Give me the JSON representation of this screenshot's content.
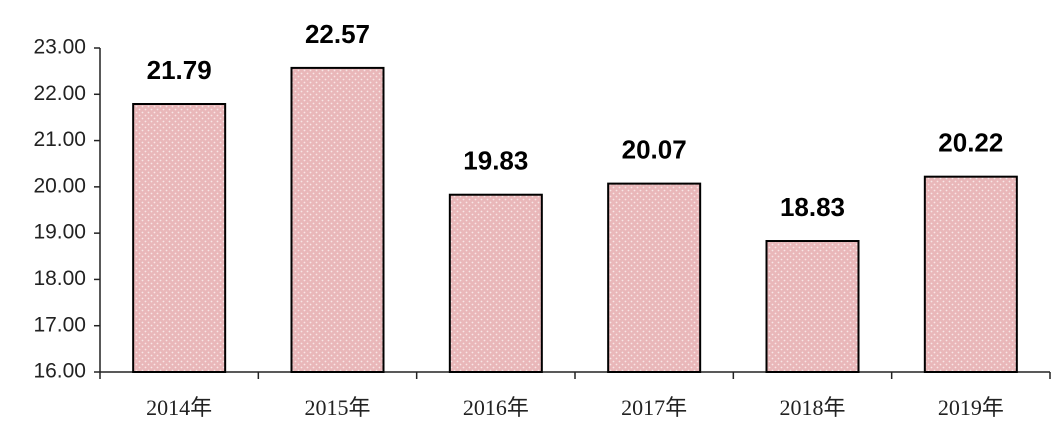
{
  "chart_data": {
    "type": "bar",
    "categories": [
      "2014年",
      "2015年",
      "2016年",
      "2017年",
      "2018年",
      "2019年"
    ],
    "values": [
      21.79,
      22.57,
      19.83,
      20.07,
      18.83,
      20.22
    ],
    "color": "#e9b7b9",
    "ylim": [
      16,
      23
    ],
    "yticks": [
      {
        "value": 16,
        "label": "16.00"
      },
      {
        "value": 17,
        "label": "17.00"
      },
      {
        "value": 18,
        "label": "18.00"
      },
      {
        "value": 19,
        "label": "19.00"
      },
      {
        "value": 20,
        "label": "20.00"
      },
      {
        "value": 21,
        "label": "21.00"
      },
      {
        "value": 22,
        "label": "22.00"
      },
      {
        "value": 23,
        "label": "23.00"
      }
    ],
    "grid": false
  }
}
